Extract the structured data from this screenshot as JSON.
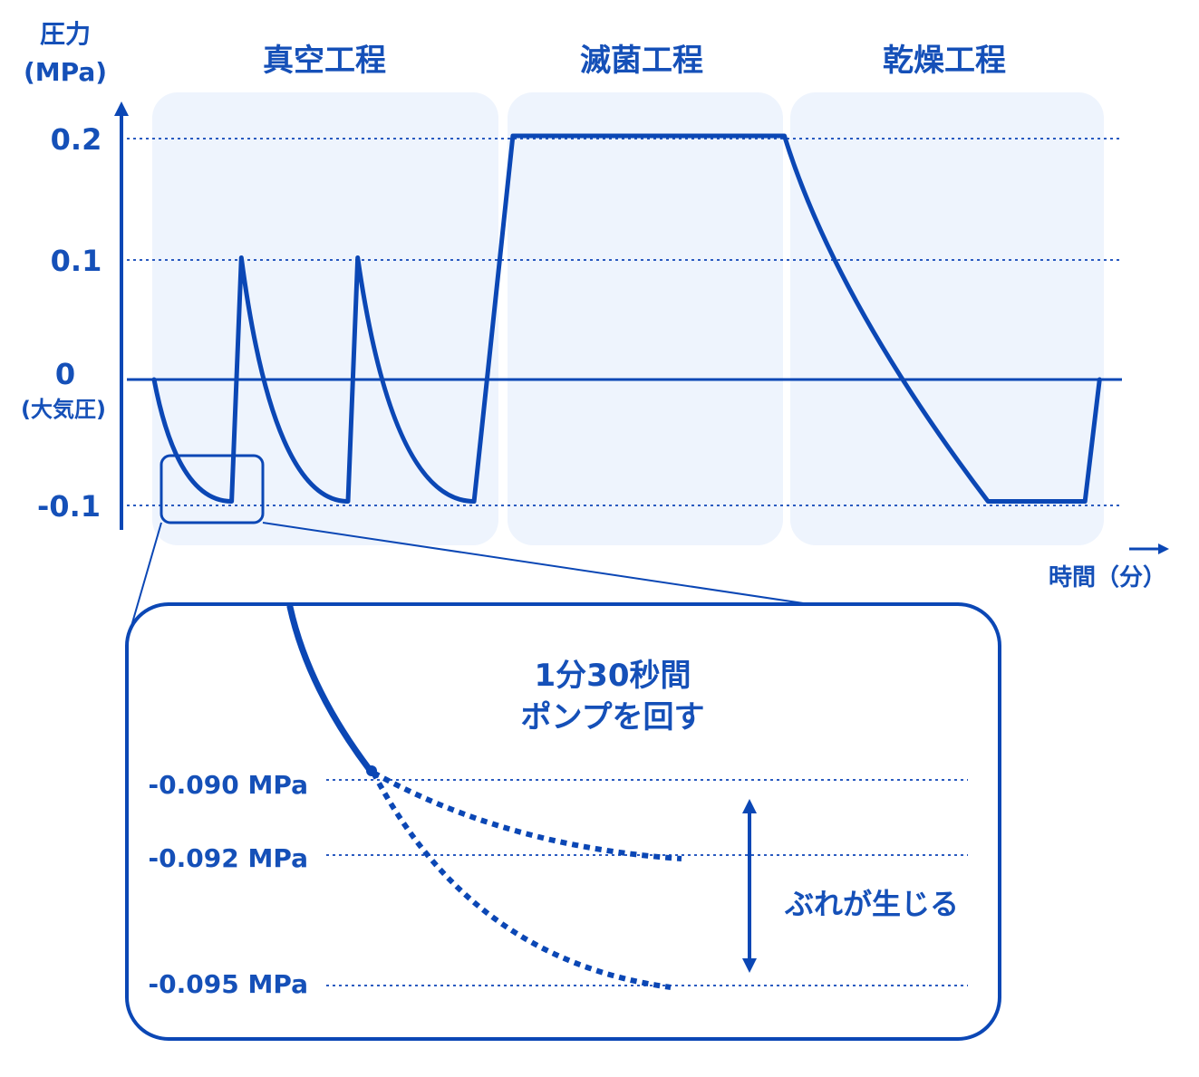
{
  "colors": {
    "primary": "#0b47b5",
    "text": "#1550b8",
    "phase_bg": "#eef4fd",
    "grid": "#2a5bc0"
  },
  "chart_data": {
    "type": "line",
    "y_axis": {
      "label_line1": "圧力",
      "label_line2": "(MPa)",
      "ticks": [
        {
          "value": 0.2,
          "label": "0.2"
        },
        {
          "value": 0.1,
          "label": "0.1"
        },
        {
          "value": 0,
          "label": "0",
          "sublabel": "(大気圧)"
        },
        {
          "value": -0.1,
          "label": "-0.1"
        }
      ]
    },
    "x_axis": {
      "label": "時間（分）"
    },
    "phases": [
      {
        "name": "真空工程"
      },
      {
        "name": "滅菌工程"
      },
      {
        "name": "乾燥工程"
      }
    ],
    "series": [
      {
        "points": [
          {
            "x": 0.0,
            "y": 0.0
          },
          {
            "x": 0.8,
            "y": -0.1
          },
          {
            "x": 0.9,
            "y": 0.1
          },
          {
            "x": 2.0,
            "y": -0.1
          },
          {
            "x": 2.1,
            "y": 0.1
          },
          {
            "x": 3.3,
            "y": -0.1
          },
          {
            "x": 3.7,
            "y": 0.2
          },
          {
            "x": 6.5,
            "y": 0.2
          },
          {
            "x": 8.6,
            "y": -0.1
          },
          {
            "x": 9.6,
            "y": -0.1
          },
          {
            "x": 9.75,
            "y": 0.0
          }
        ]
      }
    ]
  },
  "inset": {
    "title_line1": "1分30秒間",
    "title_line2": "ポンプを回す",
    "levels": [
      {
        "value": -0.09,
        "label": "-0.090 MPa"
      },
      {
        "value": -0.092,
        "label": "-0.092 MPa"
      },
      {
        "value": -0.095,
        "label": "-0.095 MPa"
      }
    ],
    "variation_label": "ぶれが生じる"
  }
}
